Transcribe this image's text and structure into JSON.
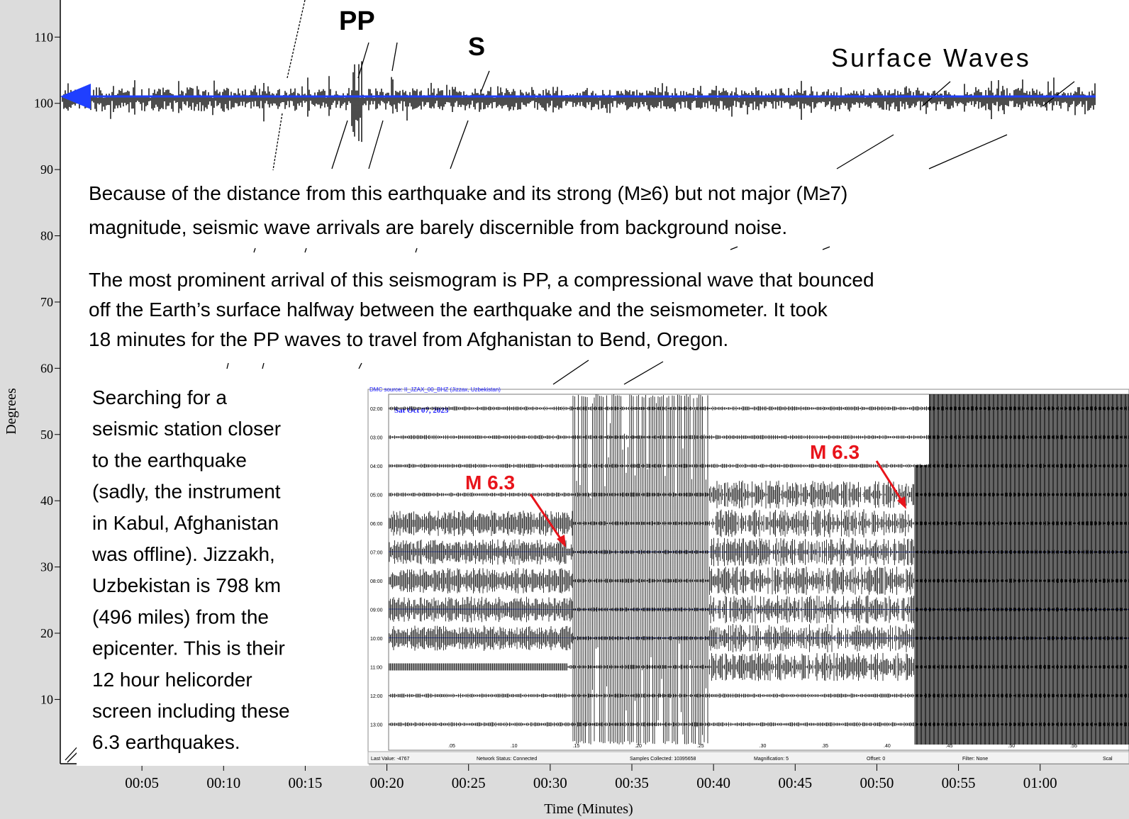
{
  "chart_data": {
    "type": "seismogram",
    "ylabel": "Degrees",
    "xlabel": "Time (Minutes)",
    "ylim": [
      0.3,
      115.6
    ],
    "yticks": [
      10,
      20,
      30,
      40,
      50,
      60,
      70,
      80,
      90,
      100,
      110
    ],
    "xlim": [
      0,
      63.4
    ],
    "xticks": [
      {
        "value": 5,
        "label": "00:05"
      },
      {
        "value": 10,
        "label": "00:10"
      },
      {
        "value": 15,
        "label": "00:15"
      },
      {
        "value": 20,
        "label": "00:20"
      },
      {
        "value": 25,
        "label": "00:25"
      },
      {
        "value": 30,
        "label": "00:30"
      },
      {
        "value": 35,
        "label": "00:35"
      },
      {
        "value": 40,
        "label": "00:40"
      },
      {
        "value": 45,
        "label": "00:45"
      },
      {
        "value": 50,
        "label": "00:50"
      },
      {
        "value": 55,
        "label": "00:55"
      },
      {
        "value": 60,
        "label": "01:00"
      }
    ],
    "trace_color": "#1f3fff",
    "annotations": [
      "PP",
      "S",
      "Surface Waves"
    ]
  },
  "notes": {
    "paragraph1": [
      "Because of the distance from this earthquake and its strong (M≥6) but not major (M≥7)",
      "magnitude, seismic wave arrivals are barely discernible from background noise."
    ],
    "paragraph2": [
      "The most prominent arrival of this seismogram is PP, a compressional wave that bounced",
      "off the Earth’s surface halfway between the earthquake and the seismometer.  It took",
      "18 minutes for the PP waves to travel from Afghanistan to Bend, Oregon."
    ],
    "side": [
      "Searching for a",
      "seismic station closer",
      "to the earthquake",
      "(sadly, the instrument",
      "in Kabul, Afghanistan",
      "was offline). Jizzakh,",
      "Uzbekistan is 798 km",
      "(496 miles) from the",
      "epicenter. This is their",
      "12 hour helicorder",
      "screen including these",
      "6.3 earthquakes."
    ]
  },
  "helicorder": {
    "source": "DMC source: II_JZAX_00_BHZ (Jizzax, Uzbekistan)",
    "date": "Sat Oct 07, 2023",
    "rows": [
      "02:00",
      "03:00",
      "04:00",
      "05:00",
      "06:00",
      "07:00",
      "08:00",
      "09:00",
      "10:00",
      "11:00",
      "12:00",
      "13:00"
    ],
    "minute_labels": [
      ".05",
      ".10",
      ".15",
      ".20",
      ".25",
      ".30",
      ".35",
      ".40",
      ".45",
      ".50",
      ".55"
    ],
    "status": [
      "Last Value:  -4767",
      "Network Status:  Connected",
      "Samples Collected:  10395658",
      "Magnification:  5",
      "Offset:  0",
      "Filter:  None",
      "Scal"
    ],
    "annotations": [
      "M 6.3",
      "M 6.3"
    ]
  }
}
